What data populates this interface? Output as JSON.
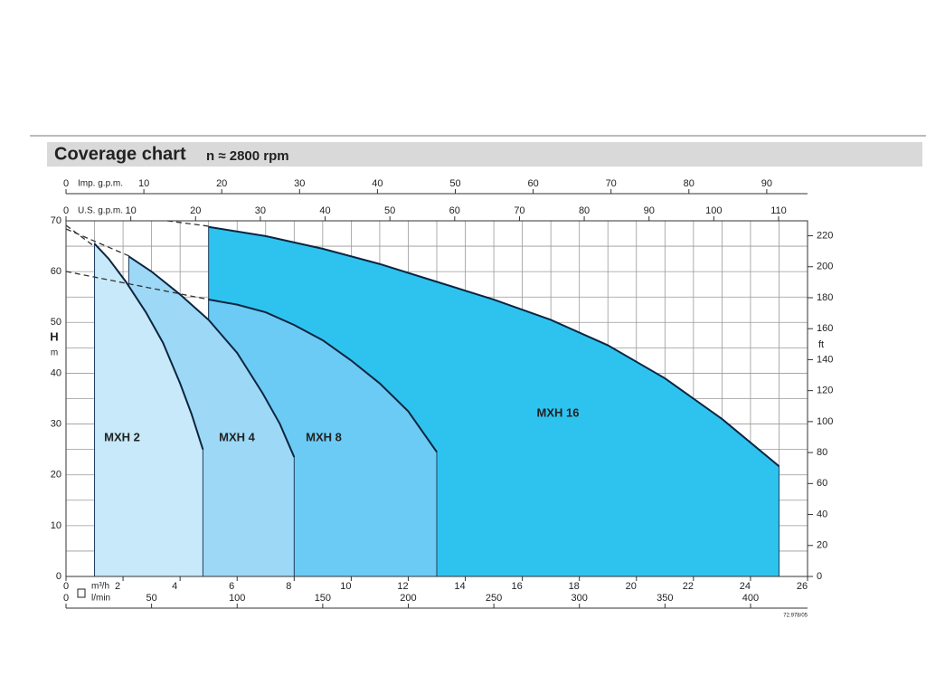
{
  "chart_data": {
    "type": "area",
    "title": "Coverage chart",
    "subtitle": "n ≈ 2800 rpm",
    "xlabel": "m³/h",
    "ylabel": "H",
    "ylabel_unit": "m",
    "y2label": "ft",
    "xlim": [
      0,
      26
    ],
    "xticks": [
      0,
      2,
      4,
      6,
      8,
      10,
      12,
      14,
      16,
      18,
      20,
      22,
      24,
      26
    ],
    "xminor": [
      1,
      3,
      5,
      7,
      9,
      11,
      13,
      15,
      17,
      19,
      21,
      23,
      25
    ],
    "ylim": [
      0,
      70
    ],
    "yticks": [
      0,
      10,
      20,
      30,
      40,
      50,
      60,
      70
    ],
    "yminor": [
      5,
      15,
      25,
      35,
      45,
      55,
      65
    ],
    "y2lim": [
      0,
      229.66
    ],
    "y2ticks": [
      0,
      20,
      40,
      60,
      80,
      100,
      120,
      140,
      160,
      180,
      200,
      220
    ],
    "grid": true,
    "extra_x_axes": [
      {
        "label": "l/min",
        "side": "bottom",
        "lim": [
          0,
          433.3
        ],
        "ticks": [
          0,
          50,
          100,
          150,
          200,
          250,
          300,
          350,
          400
        ]
      },
      {
        "label": "Imp. g.p.m.",
        "side": "top",
        "lim": [
          0,
          95.24
        ],
        "ticks": [
          0,
          10,
          20,
          30,
          40,
          50,
          60,
          70,
          80,
          90
        ]
      },
      {
        "label": "U.S. g.p.m.",
        "side": "top",
        "lim": [
          0,
          114.47
        ],
        "ticks": [
          0,
          10,
          20,
          30,
          40,
          50,
          60,
          70,
          80,
          90,
          100,
          110
        ]
      }
    ],
    "series": [
      {
        "name": "MXH 16",
        "color": "#2ec3ef",
        "x": [
          5,
          7,
          9,
          11,
          13,
          15,
          17,
          19,
          21,
          23,
          25
        ],
        "values": [
          68.8,
          67,
          64.5,
          61.5,
          58,
          54.5,
          50.5,
          45.5,
          39,
          31,
          21.7
        ]
      },
      {
        "name": "MXH 8",
        "color": "#6ccbf4",
        "x": [
          5,
          6,
          7,
          8,
          9,
          10,
          11,
          12,
          13
        ],
        "values": [
          54.5,
          53.5,
          52,
          49.5,
          46.5,
          42.5,
          38,
          32.5,
          24.5
        ]
      },
      {
        "name": "MXH 4",
        "color": "#9dd9f6",
        "x": [
          2.2,
          3,
          4,
          5,
          6,
          6.9,
          7.5,
          8
        ],
        "values": [
          63,
          60,
          55.5,
          50.5,
          44,
          36,
          30,
          23.5
        ]
      },
      {
        "name": "MXH 2",
        "color": "#c7e9f9",
        "x": [
          1,
          1.5,
          2.1,
          2.8,
          3.4,
          4.0,
          4.4,
          4.8
        ],
        "values": [
          65.5,
          62.5,
          58,
          52,
          46,
          38,
          32,
          25
        ]
      }
    ],
    "code": "72.978/05"
  }
}
